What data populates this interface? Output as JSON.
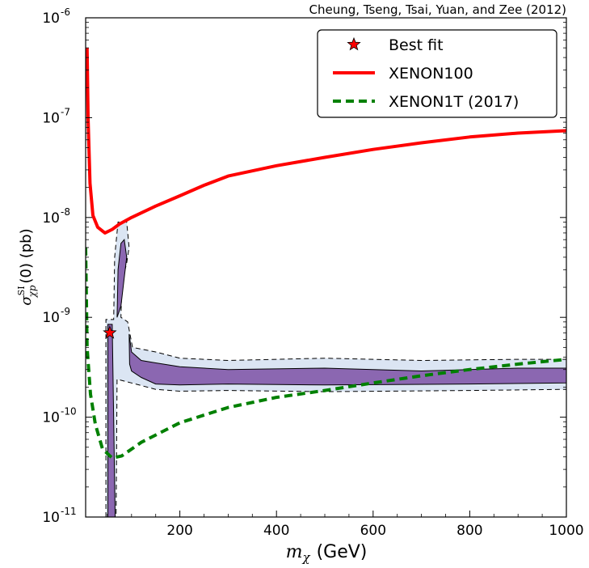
{
  "chart_data": {
    "type": "line",
    "attribution": "Cheung, Tseng, Tsai, Yuan, and Zee (2012)",
    "xlabel_symbol": "m",
    "xlabel_subscript": "χ",
    "xlabel_unit": "(GeV)",
    "ylabel_symbol": "σ",
    "ylabel_superscript": "SI",
    "ylabel_subscript": "χp",
    "ylabel_rest": "(0) (pb)",
    "xlim": [
      5,
      1000
    ],
    "ylim": [
      1e-11,
      1e-06
    ],
    "yscale": "log",
    "grid": false,
    "legend_position": "top-right",
    "x_ticks": [
      200,
      400,
      600,
      800,
      1000
    ],
    "x_tick_labels": [
      "200",
      "400",
      "600",
      "800",
      "1000"
    ],
    "y_ticks": [
      1e-11,
      1e-10,
      1e-09,
      1e-08,
      1e-07,
      1e-06
    ],
    "y_tick_labels": [
      {
        "base": "10",
        "exp": "-11"
      },
      {
        "base": "10",
        "exp": "-10"
      },
      {
        "base": "10",
        "exp": "-9"
      },
      {
        "base": "10",
        "exp": "-8"
      },
      {
        "base": "10",
        "exp": "-7"
      },
      {
        "base": "10",
        "exp": "-6"
      }
    ],
    "series": [
      {
        "name": "XENON100",
        "color": "#ff0000",
        "style": "solid",
        "points": [
          [
            8,
            5e-07
          ],
          [
            10,
            1e-07
          ],
          [
            14,
            2.2e-08
          ],
          [
            20,
            1.05e-08
          ],
          [
            30,
            8e-09
          ],
          [
            45,
            7e-09
          ],
          [
            60,
            7.6e-09
          ],
          [
            75,
            8.6e-09
          ],
          [
            100,
            1e-08
          ],
          [
            150,
            1.3e-08
          ],
          [
            200,
            1.65e-08
          ],
          [
            250,
            2.1e-08
          ],
          [
            300,
            2.6e-08
          ],
          [
            400,
            3.3e-08
          ],
          [
            500,
            4e-08
          ],
          [
            600,
            4.8e-08
          ],
          [
            700,
            5.6e-08
          ],
          [
            800,
            6.4e-08
          ],
          [
            900,
            7e-08
          ],
          [
            1000,
            7.4e-08
          ]
        ]
      },
      {
        "name": "XENON1T (2017)",
        "color": "#008000",
        "style": "dashed",
        "points": [
          [
            5,
            5e-09
          ],
          [
            8,
            5e-10
          ],
          [
            15,
            1.7e-10
          ],
          [
            25,
            8.5e-11
          ],
          [
            40,
            4.8e-11
          ],
          [
            60,
            3.9e-11
          ],
          [
            80,
            4.1e-11
          ],
          [
            120,
            5.6e-11
          ],
          [
            200,
            8.8e-11
          ],
          [
            300,
            1.25e-10
          ],
          [
            400,
            1.58e-10
          ],
          [
            500,
            1.85e-10
          ],
          [
            600,
            2.2e-10
          ],
          [
            700,
            2.6e-10
          ],
          [
            800,
            3e-10
          ],
          [
            900,
            3.4e-10
          ],
          [
            1000,
            3.8e-10
          ]
        ]
      },
      {
        "name": "Best fit",
        "color": "#ff0000",
        "style": "star",
        "points": [
          [
            55,
            7e-10
          ]
        ]
      }
    ],
    "regions": [
      {
        "level": "outer",
        "fill": "#dbe5f3",
        "boundary": "dashed",
        "polygon": [
          [
            47,
            1e-11
          ],
          [
            47,
            9.5e-10
          ],
          [
            63,
            9.5e-10
          ],
          [
            65,
            4e-09
          ],
          [
            72,
            9e-09
          ],
          [
            90,
            9e-09
          ],
          [
            95,
            5e-09
          ],
          [
            90,
            3.5e-09
          ],
          [
            80,
            2.2e-09
          ],
          [
            78,
            1e-09
          ],
          [
            92,
            9e-10
          ],
          [
            102,
            5e-10
          ],
          [
            150,
            4.5e-10
          ],
          [
            200,
            3.9e-10
          ],
          [
            300,
            3.7e-10
          ],
          [
            500,
            3.9e-10
          ],
          [
            700,
            3.7e-10
          ],
          [
            900,
            3.8e-10
          ],
          [
            1000,
            3.8e-10
          ],
          [
            1000,
            1.9e-10
          ],
          [
            800,
            1.85e-10
          ],
          [
            500,
            1.8e-10
          ],
          [
            300,
            1.85e-10
          ],
          [
            200,
            1.82e-10
          ],
          [
            150,
            1.9e-10
          ],
          [
            100,
            2.2e-10
          ],
          [
            70,
            2.4e-10
          ],
          [
            68,
            1e-11
          ]
        ]
      },
      {
        "level": "inner",
        "fill": "#8b67b1",
        "boundary": "solid",
        "polygon": [
          [
            51,
            1e-11
          ],
          [
            51,
            8.5e-10
          ],
          [
            60,
            8.5e-10
          ],
          [
            62,
            2e-10
          ],
          [
            66,
            1e-11
          ]
        ]
      },
      {
        "level": "inner",
        "fill": "#8b67b1",
        "boundary": "solid",
        "polygon": [
          [
            70,
            1e-09
          ],
          [
            72,
            3e-09
          ],
          [
            78,
            5.5e-09
          ],
          [
            85,
            6e-09
          ],
          [
            90,
            4e-09
          ],
          [
            85,
            2.5e-09
          ],
          [
            78,
            1.3e-09
          ]
        ]
      },
      {
        "level": "inner",
        "fill": "#8b67b1",
        "boundary": "solid",
        "polygon": [
          [
            95,
            6.8e-10
          ],
          [
            100,
            4.5e-10
          ],
          [
            120,
            3.7e-10
          ],
          [
            150,
            3.5e-10
          ],
          [
            200,
            3.2e-10
          ],
          [
            300,
            3e-10
          ],
          [
            500,
            3.1e-10
          ],
          [
            700,
            2.9e-10
          ],
          [
            900,
            3.1e-10
          ],
          [
            1000,
            3.1e-10
          ],
          [
            1000,
            2.2e-10
          ],
          [
            800,
            2.15e-10
          ],
          [
            500,
            2.1e-10
          ],
          [
            300,
            2.15e-10
          ],
          [
            200,
            2.1e-10
          ],
          [
            150,
            2.15e-10
          ],
          [
            120,
            2.5e-10
          ],
          [
            100,
            2.9e-10
          ],
          [
            96,
            3.4e-10
          ]
        ]
      }
    ]
  }
}
